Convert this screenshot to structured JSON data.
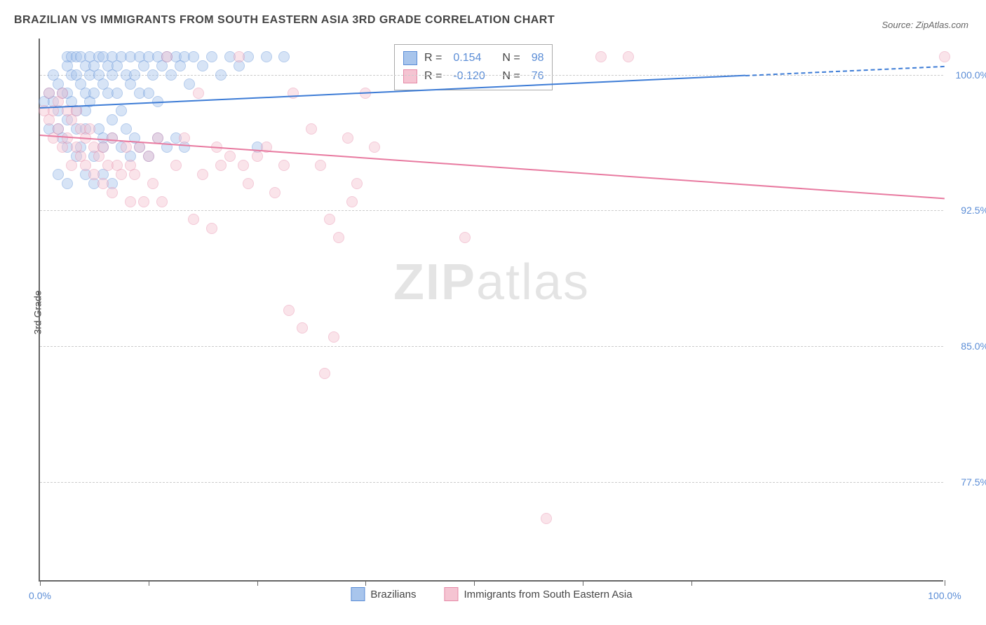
{
  "title": "BRAZILIAN VS IMMIGRANTS FROM SOUTH EASTERN ASIA 3RD GRADE CORRELATION CHART",
  "source": "Source: ZipAtlas.com",
  "y_axis_label": "3rd Grade",
  "watermark_zip": "ZIP",
  "watermark_atlas": "atlas",
  "chart": {
    "type": "scatter",
    "background_color": "#ffffff",
    "grid_color": "#cccccc",
    "axis_color": "#666666",
    "xlim": [
      0,
      100
    ],
    "ylim": [
      72,
      102
    ],
    "y_ticks": [
      77.5,
      85.0,
      92.5,
      100.0
    ],
    "y_tick_labels": [
      "77.5%",
      "85.0%",
      "92.5%",
      "100.0%"
    ],
    "x_ticks": [
      0,
      12,
      24,
      36,
      48,
      60,
      72,
      100
    ],
    "x_tick_labels": {
      "0": "0.0%",
      "100": "100.0%"
    },
    "title_fontsize": 16,
    "label_fontsize": 14,
    "tick_label_color": "#5b8dd6",
    "marker_radius": 8,
    "marker_opacity": 0.45,
    "series": [
      {
        "name": "Brazilians",
        "color_fill": "#a8c5ec",
        "color_stroke": "#5b8dd6",
        "R": "0.154",
        "N": "98",
        "trend": {
          "x1": 0,
          "y1": 98.2,
          "x2": 100,
          "y2": 100.5,
          "color": "#3d7cd6",
          "dash_after_x": 78
        },
        "points": [
          [
            0.5,
            98.5
          ],
          [
            1,
            99
          ],
          [
            1,
            97
          ],
          [
            1.5,
            98.5
          ],
          [
            1.5,
            100
          ],
          [
            2,
            99.5
          ],
          [
            2,
            98
          ],
          [
            2,
            97
          ],
          [
            2.5,
            96.5
          ],
          [
            2.5,
            99
          ],
          [
            3,
            100.5
          ],
          [
            3,
            101
          ],
          [
            3,
            99
          ],
          [
            3,
            97.5
          ],
          [
            3.5,
            100
          ],
          [
            3.5,
            101
          ],
          [
            3.5,
            98.5
          ],
          [
            4,
            101
          ],
          [
            4,
            100
          ],
          [
            4,
            98
          ],
          [
            4,
            97
          ],
          [
            4.5,
            101
          ],
          [
            4.5,
            99.5
          ],
          [
            4.5,
            96
          ],
          [
            5,
            100.5
          ],
          [
            5,
            99
          ],
          [
            5,
            98
          ],
          [
            5,
            97
          ],
          [
            5.5,
            101
          ],
          [
            5.5,
            100
          ],
          [
            5.5,
            98.5
          ],
          [
            6,
            100.5
          ],
          [
            6,
            99
          ],
          [
            6.5,
            101
          ],
          [
            6.5,
            100
          ],
          [
            6.5,
            97
          ],
          [
            7,
            101
          ],
          [
            7,
            99.5
          ],
          [
            7,
            96.5
          ],
          [
            7.5,
            100.5
          ],
          [
            7.5,
            99
          ],
          [
            8,
            101
          ],
          [
            8,
            100
          ],
          [
            8,
            97.5
          ],
          [
            8.5,
            100.5
          ],
          [
            8.5,
            99
          ],
          [
            9,
            101
          ],
          [
            9,
            98
          ],
          [
            9.5,
            100
          ],
          [
            9.5,
            97
          ],
          [
            10,
            101
          ],
          [
            10,
            99.5
          ],
          [
            10.5,
            100
          ],
          [
            10.5,
            96.5
          ],
          [
            11,
            101
          ],
          [
            11,
            99
          ],
          [
            11.5,
            100.5
          ],
          [
            12,
            101
          ],
          [
            12,
            99
          ],
          [
            12.5,
            100
          ],
          [
            13,
            101
          ],
          [
            13,
            98.5
          ],
          [
            13.5,
            100.5
          ],
          [
            14,
            101
          ],
          [
            14.5,
            100
          ],
          [
            15,
            101
          ],
          [
            15.5,
            100.5
          ],
          [
            16,
            101
          ],
          [
            16.5,
            99.5
          ],
          [
            17,
            101
          ],
          [
            18,
            100.5
          ],
          [
            19,
            101
          ],
          [
            20,
            100
          ],
          [
            21,
            101
          ],
          [
            22,
            100.5
          ],
          [
            23,
            101
          ],
          [
            25,
            101
          ],
          [
            27,
            101
          ],
          [
            24,
            96
          ],
          [
            9,
            96
          ],
          [
            10,
            95.5
          ],
          [
            6,
            95.5
          ],
          [
            7,
            96
          ],
          [
            8,
            96.5
          ],
          [
            3,
            96
          ],
          [
            4,
            95.5
          ],
          [
            11,
            96
          ],
          [
            12,
            95.5
          ],
          [
            13,
            96.5
          ],
          [
            14,
            96
          ],
          [
            15,
            96.5
          ],
          [
            16,
            96
          ],
          [
            5,
            94.5
          ],
          [
            6,
            94
          ],
          [
            7,
            94.5
          ],
          [
            8,
            94
          ],
          [
            2,
            94.5
          ],
          [
            3,
            94
          ]
        ]
      },
      {
        "name": "Immigrants from South Eastern Asia",
        "color_fill": "#f5c4d2",
        "color_stroke": "#e68aa8",
        "R": "-0.120",
        "N": "76",
        "trend": {
          "x1": 0,
          "y1": 96.7,
          "x2": 100,
          "y2": 93.2,
          "color": "#e87aa0"
        },
        "points": [
          [
            0.5,
            98
          ],
          [
            1,
            97.5
          ],
          [
            1,
            99
          ],
          [
            1.5,
            98
          ],
          [
            1.5,
            96.5
          ],
          [
            2,
            98.5
          ],
          [
            2,
            97
          ],
          [
            2.5,
            99
          ],
          [
            2.5,
            96
          ],
          [
            3,
            98
          ],
          [
            3,
            96.5
          ],
          [
            3.5,
            97.5
          ],
          [
            3.5,
            95
          ],
          [
            4,
            98
          ],
          [
            4,
            96
          ],
          [
            4.5,
            97
          ],
          [
            4.5,
            95.5
          ],
          [
            5,
            96.5
          ],
          [
            5,
            95
          ],
          [
            5.5,
            97
          ],
          [
            6,
            96
          ],
          [
            6,
            94.5
          ],
          [
            6.5,
            95.5
          ],
          [
            7,
            96
          ],
          [
            7,
            94
          ],
          [
            7.5,
            95
          ],
          [
            8,
            96.5
          ],
          [
            8,
            93.5
          ],
          [
            8.5,
            95
          ],
          [
            9,
            94.5
          ],
          [
            9.5,
            96
          ],
          [
            10,
            95
          ],
          [
            10,
            93
          ],
          [
            10.5,
            94.5
          ],
          [
            11,
            96
          ],
          [
            11.5,
            93
          ],
          [
            12,
            95.5
          ],
          [
            12.5,
            94
          ],
          [
            13,
            96.5
          ],
          [
            13.5,
            93
          ],
          [
            14,
            101
          ],
          [
            15,
            95
          ],
          [
            16,
            96.5
          ],
          [
            17,
            92
          ],
          [
            17.5,
            99
          ],
          [
            18,
            94.5
          ],
          [
            19,
            91.5
          ],
          [
            19.5,
            96
          ],
          [
            20,
            95
          ],
          [
            21,
            95.5
          ],
          [
            22,
            101
          ],
          [
            22.5,
            95
          ],
          [
            23,
            94
          ],
          [
            24,
            95.5
          ],
          [
            25,
            96
          ],
          [
            26,
            93.5
          ],
          [
            27,
            95
          ],
          [
            27.5,
            87
          ],
          [
            28,
            99
          ],
          [
            29,
            86
          ],
          [
            30,
            97
          ],
          [
            31,
            95
          ],
          [
            31.5,
            83.5
          ],
          [
            32,
            92
          ],
          [
            32.5,
            85.5
          ],
          [
            33,
            91
          ],
          [
            34,
            96.5
          ],
          [
            34.5,
            93
          ],
          [
            35,
            94
          ],
          [
            36,
            99
          ],
          [
            37,
            96
          ],
          [
            47,
            91
          ],
          [
            56,
            75.5
          ],
          [
            62,
            101
          ],
          [
            65,
            101
          ],
          [
            100,
            101
          ]
        ]
      }
    ]
  },
  "bottom_legend": {
    "items": [
      "Brazilians",
      "Immigrants from South Eastern Asia"
    ]
  }
}
